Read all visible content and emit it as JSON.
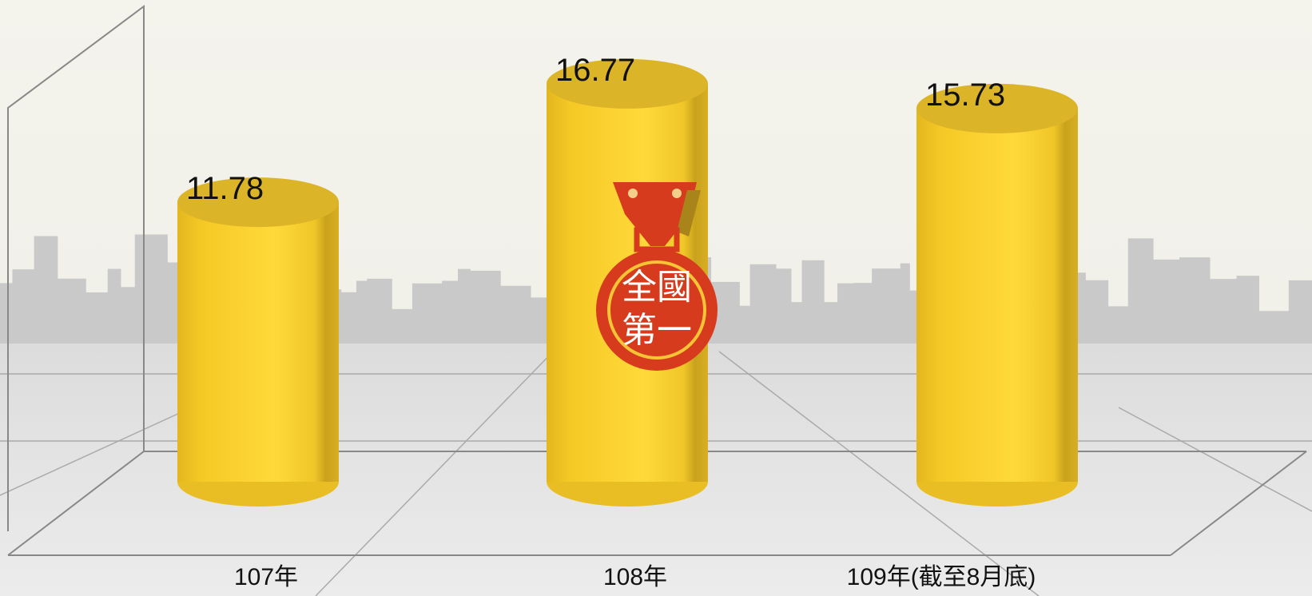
{
  "chart_data": {
    "type": "bar",
    "categories": [
      "107年",
      "108年",
      "109年(截至8月底)"
    ],
    "values": [
      11.78,
      16.77,
      15.73
    ],
    "color": "#fbd22f",
    "annotation": [
      "全國",
      "第一"
    ]
  }
}
